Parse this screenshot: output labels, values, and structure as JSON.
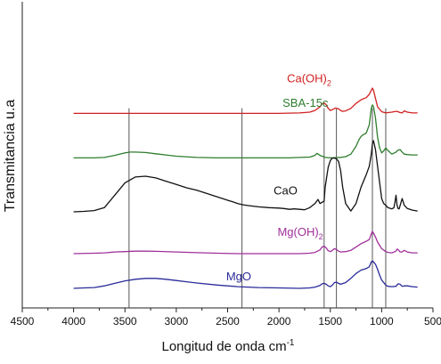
{
  "chart_data": {
    "type": "line",
    "xlabel": "Longitud de onda cm",
    "xlabel_sup": "-1",
    "ylabel": "Transmitancia u.a",
    "xlim": [
      4500,
      500
    ],
    "x_reversed": true,
    "xticks": [
      "4500",
      "4000",
      "3500",
      "3000",
      "2500",
      "2000",
      "1500",
      "1000",
      "500"
    ],
    "reference_lines_x": [
      3460,
      2360,
      1560,
      1440,
      1090,
      960
    ],
    "series": [
      {
        "name": "SBA-15c",
        "name_sub": "",
        "color": "#2e7d2e",
        "label_pos": [
          1520,
          8.15
        ],
        "x": [
          4000,
          3800,
          3700,
          3600,
          3500,
          3450,
          3400,
          3300,
          3200,
          3100,
          3000,
          2800,
          2600,
          2400,
          2200,
          2000,
          1900,
          1800,
          1700,
          1650,
          1630,
          1600,
          1550,
          1500,
          1400,
          1350,
          1300,
          1250,
          1220,
          1200,
          1180,
          1150,
          1120,
          1100,
          1090,
          1080,
          1060,
          1040,
          1020,
          1000,
          980,
          960,
          940,
          900,
          860,
          840,
          820,
          800,
          780,
          750,
          700,
          650
        ],
        "y": [
          2.0,
          2.0,
          2.05,
          2.3,
          2.6,
          2.7,
          2.7,
          2.65,
          2.5,
          2.35,
          2.2,
          2.05,
          2.0,
          2.0,
          2.0,
          2.0,
          2.0,
          2.05,
          2.1,
          2.3,
          2.55,
          2.3,
          2.05,
          2.0,
          2.05,
          2.15,
          2.45,
          3.4,
          4.2,
          4.6,
          4.8,
          5.0,
          6.0,
          8.0,
          8.4,
          8.2,
          6.8,
          4.5,
          3.2,
          2.6,
          2.85,
          3.2,
          2.9,
          2.45,
          2.7,
          2.95,
          3.0,
          2.7,
          2.45,
          2.4,
          2.35,
          2.35
        ]
      },
      {
        "name": "Ca(OH)",
        "name_sub": "2",
        "color": "#d11f1f",
        "label_pos": [
          1490,
          5.75
        ],
        "x": [
          4000,
          3500,
          3000,
          2500,
          2000,
          1800,
          1700,
          1650,
          1600,
          1580,
          1560,
          1540,
          1520,
          1500,
          1480,
          1450,
          1420,
          1400,
          1380,
          1350,
          1300,
          1250,
          1200,
          1150,
          1120,
          1100,
          1090,
          1080,
          1060,
          1040,
          1000,
          960,
          940,
          900,
          880,
          850,
          820,
          800,
          780,
          750,
          700,
          650
        ],
        "y": [
          2.0,
          2.0,
          2.0,
          2.0,
          2.0,
          2.05,
          2.15,
          2.35,
          2.8,
          3.15,
          3.25,
          3.05,
          2.6,
          2.35,
          2.45,
          2.65,
          2.55,
          2.35,
          2.25,
          2.3,
          2.6,
          3.2,
          3.65,
          3.9,
          4.3,
          4.8,
          5.05,
          4.8,
          3.8,
          2.8,
          2.2,
          2.05,
          2.1,
          2.15,
          2.2,
          2.25,
          2.1,
          2.05,
          2.3,
          2.15,
          2.05,
          2.05
        ]
      },
      {
        "name": "CaO",
        "name_sub": "",
        "color": "#111111",
        "label_pos": [
          1820,
          2.1
        ],
        "x": [
          4000,
          3900,
          3800,
          3700,
          3600,
          3500,
          3400,
          3300,
          3200,
          3100,
          3000,
          2900,
          2800,
          2700,
          2600,
          2500,
          2450,
          2400,
          2350,
          2300,
          2200,
          2100,
          2000,
          1950,
          1900,
          1850,
          1800,
          1750,
          1700,
          1650,
          1620,
          1600,
          1560,
          1550,
          1520,
          1500,
          1480,
          1460,
          1440,
          1420,
          1400,
          1380,
          1350,
          1300,
          1250,
          1200,
          1150,
          1120,
          1100,
          1090,
          1080,
          1060,
          1040,
          1000,
          980,
          960,
          940,
          900,
          880,
          870,
          860,
          850,
          840,
          830,
          800,
          780,
          750,
          700,
          650
        ],
        "y": [
          0.0,
          0.05,
          0.15,
          0.5,
          2.0,
          3.5,
          4.2,
          4.3,
          4.1,
          3.7,
          3.3,
          2.9,
          2.6,
          2.2,
          1.8,
          1.4,
          1.2,
          1.0,
          0.85,
          0.75,
          0.6,
          0.5,
          0.45,
          0.4,
          0.3,
          0.35,
          0.3,
          0.25,
          0.5,
          1.0,
          1.5,
          1.0,
          1.3,
          3.0,
          5.4,
          6.2,
          6.5,
          6.5,
          6.4,
          6.1,
          5.0,
          3.0,
          1.0,
          0.1,
          1.0,
          3.0,
          4.5,
          5.5,
          7.0,
          8.2,
          8.6,
          7.5,
          5.5,
          1.6,
          1.0,
          0.8,
          0.5,
          0.35,
          0.5,
          1.2,
          2.0,
          0.8,
          0.4,
          0.35,
          1.6,
          0.8,
          0.4,
          0.2,
          0.1
        ]
      },
      {
        "name": "Mg(OH)",
        "name_sub": "2",
        "color": "#a0309a",
        "label_pos": [
          1570,
          2.15
        ],
        "x": [
          4000,
          3800,
          3700,
          3600,
          3500,
          3400,
          3300,
          3200,
          3000,
          2800,
          2600,
          2400,
          2200,
          2000,
          1800,
          1700,
          1650,
          1600,
          1580,
          1560,
          1540,
          1520,
          1500,
          1480,
          1460,
          1440,
          1420,
          1400,
          1350,
          1300,
          1250,
          1200,
          1150,
          1120,
          1100,
          1090,
          1080,
          1060,
          1040,
          1000,
          960,
          940,
          900,
          860,
          850,
          840,
          820,
          800,
          780,
          750,
          700,
          650
        ],
        "y": [
          0.0,
          0.05,
          0.1,
          0.2,
          0.25,
          0.3,
          0.3,
          0.28,
          0.2,
          0.12,
          0.05,
          0.0,
          0.0,
          0.0,
          0.0,
          0.05,
          0.15,
          0.45,
          0.8,
          0.9,
          0.7,
          0.35,
          0.25,
          0.4,
          0.6,
          0.5,
          0.3,
          0.2,
          0.25,
          0.4,
          0.8,
          1.2,
          1.5,
          1.7,
          2.4,
          2.7,
          2.5,
          2.0,
          1.4,
          0.6,
          0.25,
          0.15,
          0.1,
          0.3,
          0.55,
          0.5,
          0.2,
          0.2,
          0.4,
          0.2,
          0.1,
          0.1
        ]
      },
      {
        "name": "MgO",
        "name_sub": "",
        "color": "#2a2a9a",
        "label_pos": [
          2270,
          0.95
        ],
        "x": [
          4000,
          3900,
          3800,
          3700,
          3600,
          3500,
          3400,
          3300,
          3200,
          3100,
          3000,
          2900,
          2800,
          2600,
          2400,
          2200,
          2000,
          1800,
          1700,
          1650,
          1600,
          1580,
          1560,
          1540,
          1520,
          1500,
          1480,
          1460,
          1440,
          1420,
          1400,
          1350,
          1300,
          1250,
          1200,
          1150,
          1120,
          1100,
          1090,
          1080,
          1060,
          1040,
          1020,
          1000,
          960,
          940,
          900,
          860,
          840,
          820,
          800,
          780,
          750,
          700,
          650
        ],
        "y": [
          0.0,
          0.05,
          0.1,
          0.3,
          0.6,
          0.9,
          1.1,
          1.2,
          1.2,
          1.1,
          0.95,
          0.8,
          0.65,
          0.4,
          0.2,
          0.1,
          0.05,
          0.0,
          0.05,
          0.15,
          0.35,
          0.55,
          0.6,
          0.5,
          0.3,
          0.2,
          0.4,
          0.7,
          0.75,
          0.6,
          0.5,
          0.7,
          1.2,
          1.8,
          2.2,
          2.4,
          2.6,
          3.2,
          3.3,
          3.2,
          2.9,
          2.3,
          1.6,
          1.0,
          0.4,
          0.25,
          0.2,
          0.25,
          0.55,
          0.5,
          0.25,
          0.3,
          0.3,
          0.2,
          0.15
        ]
      }
    ]
  }
}
